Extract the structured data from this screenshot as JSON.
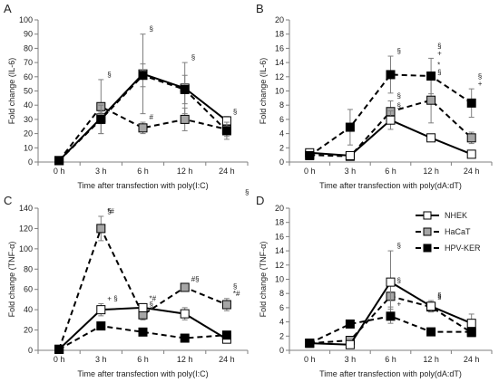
{
  "chart_data": [
    {
      "panel": "A",
      "type": "line",
      "ylabel": "Fold change (IL-6)",
      "xlabel": "Time after transfection with poly(I:C)",
      "categories": [
        "0 h",
        "3 h",
        "6 h",
        "12 h",
        "24 h"
      ],
      "ylim": [
        0,
        100
      ],
      "yticks": [
        0,
        10,
        20,
        30,
        40,
        50,
        60,
        70,
        80,
        90,
        100
      ],
      "grid": false,
      "series": [
        {
          "name": "NHEK",
          "values": [
            1,
            31,
            62,
            52,
            29
          ],
          "err": [
            0,
            4,
            28,
            18,
            3
          ]
        },
        {
          "name": "HaCaT",
          "values": [
            1,
            39,
            24,
            30,
            23
          ],
          "err": [
            0,
            19,
            4,
            8,
            5
          ]
        },
        {
          "name": "HPV-KER",
          "values": [
            1,
            30,
            61,
            51,
            22
          ],
          "err": [
            0,
            10,
            8,
            10,
            6
          ]
        }
      ],
      "annotations": [
        {
          "text": "§",
          "series": "HaCaT",
          "at": "3 h"
        },
        {
          "text": "§",
          "series": "NHEK",
          "at": "6 h"
        },
        {
          "text": "#",
          "series": "HaCaT",
          "at": "6 h"
        },
        {
          "text": "§",
          "series": "NHEK",
          "at": "12 h"
        },
        {
          "text": "§",
          "series": "NHEK",
          "at": "24 h"
        }
      ]
    },
    {
      "panel": "B",
      "type": "line",
      "ylabel": "Fold change (IL-6)",
      "xlabel": "Time after transfection with poly(dA:dT)",
      "categories": [
        "0 h",
        "3 h",
        "6 h",
        "12 h",
        "24 h"
      ],
      "ylim": [
        0,
        20
      ],
      "yticks": [
        0,
        2,
        4,
        6,
        8,
        10,
        12,
        14,
        16,
        18,
        20
      ],
      "grid": false,
      "series": [
        {
          "name": "NHEK",
          "values": [
            1.3,
            0.9,
            5.9,
            3.4,
            1.1
          ],
          "err": [
            0.3,
            0.3,
            1.3,
            0.5,
            0.2
          ]
        },
        {
          "name": "HaCaT",
          "values": [
            1.0,
            0.8,
            7.1,
            8.7,
            3.4
          ],
          "err": [
            0.3,
            0.3,
            1.5,
            3.2,
            0.8
          ]
        },
        {
          "name": "HPV-KER",
          "values": [
            0.9,
            4.9,
            12.3,
            12.1,
            8.3
          ],
          "err": [
            0.3,
            2.5,
            2.6,
            2.5,
            2.0
          ]
        }
      ],
      "annotations": [
        {
          "text": "§",
          "series": "HPV-KER",
          "at": "6 h"
        },
        {
          "text": "§",
          "series": "HaCaT",
          "at": "6 h"
        },
        {
          "text": "§",
          "series": "NHEK",
          "at": "6 h"
        },
        {
          "text": "+",
          "series": "HPV-KER",
          "at": "12 h"
        },
        {
          "text": "§",
          "series": "HPV-KER",
          "at": "12 h"
        },
        {
          "text": "§",
          "series": "HaCaT",
          "at": "12 h"
        },
        {
          "text": "*",
          "series": "HaCaT",
          "at": "12 h"
        },
        {
          "text": "+",
          "series": "HPV-KER",
          "at": "24 h"
        },
        {
          "text": "§",
          "series": "HPV-KER",
          "at": "24 h"
        }
      ]
    },
    {
      "panel": "C",
      "type": "line",
      "ylabel": "Fold change (TNF-α)",
      "xlabel": "Time after transfection with poly(I:C)",
      "categories": [
        "0 h",
        "3 h",
        "6 h",
        "12 h",
        "24 h"
      ],
      "ylim": [
        0,
        140
      ],
      "yticks": [
        0,
        20,
        40,
        60,
        80,
        100,
        120,
        140
      ],
      "grid": false,
      "series": [
        {
          "name": "NHEK",
          "values": [
            1,
            40,
            42,
            36,
            11
          ],
          "err": [
            0,
            6,
            4,
            6,
            2
          ]
        },
        {
          "name": "HaCaT",
          "values": [
            1,
            120,
            35,
            62,
            45
          ],
          "err": [
            0,
            12,
            5,
            3,
            6
          ]
        },
        {
          "name": "HPV-KER",
          "values": [
            1,
            24,
            18,
            12,
            15
          ],
          "err": [
            0,
            3,
            2,
            2,
            2
          ]
        }
      ],
      "annotations": [
        {
          "text": "*#",
          "series": "HaCaT",
          "at": "3 h"
        },
        {
          "text": "§",
          "series": "HaCaT",
          "at": "3 h"
        },
        {
          "text": "+ §",
          "series": "NHEK",
          "at": "3 h"
        },
        {
          "text": "*#",
          "series": "NHEK",
          "at": "6 h"
        },
        {
          "text": "§",
          "series": "HaCaT",
          "at": "6 h"
        },
        {
          "text": "#§",
          "series": "HaCaT",
          "at": "12 h"
        },
        {
          "text": "*#",
          "series": "HaCaT",
          "at": "24 h"
        },
        {
          "text": "§",
          "series": "HaCaT",
          "at": "24 h"
        }
      ]
    },
    {
      "panel": "D",
      "type": "line",
      "ylabel": "Fold change (TNF-α)",
      "xlabel": "Time after transfection with poly(dA:dT)",
      "categories": [
        "0 h",
        "3 h",
        "6 h",
        "12 h",
        "24 h"
      ],
      "ylim": [
        0,
        20
      ],
      "yticks": [
        0,
        2,
        4,
        6,
        8,
        10,
        12,
        14,
        16,
        18,
        20
      ],
      "grid": false,
      "legend": {
        "position": "top-right",
        "entries": [
          "NHEK",
          "HaCaT",
          "HPV-KER"
        ]
      },
      "series": [
        {
          "name": "NHEK",
          "values": [
            1.0,
            0.8,
            9.6,
            6.2,
            3.8
          ],
          "err": [
            0.2,
            0.3,
            4.4,
            0.8,
            1.3
          ]
        },
        {
          "name": "HaCaT",
          "values": [
            1.0,
            1.4,
            7.6,
            6.1,
            2.5
          ],
          "err": [
            0.2,
            0.3,
            1.5,
            0.7,
            0.5
          ]
        },
        {
          "name": "HPV-KER",
          "values": [
            1.0,
            3.7,
            4.8,
            2.6,
            2.6
          ],
          "err": [
            0.2,
            0.5,
            1.0,
            0.3,
            0.3
          ]
        }
      ],
      "annotations": [
        {
          "text": "§",
          "series": "NHEK",
          "at": "6 h"
        },
        {
          "text": "§",
          "series": "HaCaT",
          "at": "6 h"
        },
        {
          "text": "+",
          "series": "HPV-KER",
          "at": "6 h"
        },
        {
          "text": "§",
          "series": "NHEK",
          "at": "12 h"
        },
        {
          "text": "§",
          "series": "HaCaT",
          "at": "12 h"
        }
      ]
    }
  ],
  "styles": {
    "NHEK": {
      "fill": "#ffffff",
      "dash": "",
      "stroke": "#000000"
    },
    "HaCaT": {
      "fill": "#a6a6a6",
      "dash": "6,4",
      "stroke": "#000000"
    },
    "HPV-KER": {
      "fill": "#000000",
      "dash": "6,4",
      "stroke": "#000000"
    },
    "axis_color": "#7f7f7f",
    "errorbar_color": "#7f7f7f"
  },
  "stray_mark": "§"
}
